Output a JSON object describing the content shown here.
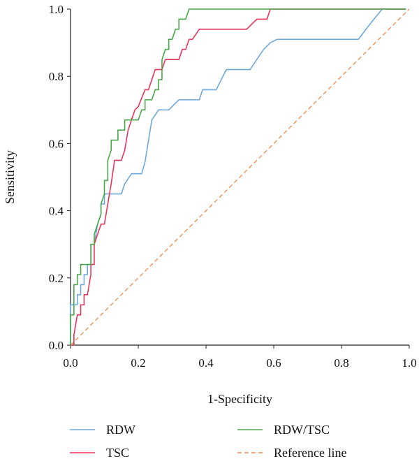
{
  "chart_data": {
    "type": "line",
    "xlabel": "1-Specificity",
    "ylabel": "Sensitivity",
    "xlim": [
      0,
      1
    ],
    "ylim": [
      0,
      1
    ],
    "x_ticks": [
      "0.0",
      "0.2",
      "0.4",
      "0.6",
      "0.8",
      "1.0"
    ],
    "y_ticks": [
      "0.0",
      "0.2",
      "0.4",
      "0.6",
      "0.8",
      "1.0"
    ],
    "grid": false,
    "legend_position": "bottom",
    "series": [
      {
        "name": "RDW",
        "color": "#6fa8dc",
        "dash": "solid",
        "points": [
          [
            0,
            0
          ],
          [
            0,
            0.12
          ],
          [
            0.02,
            0.12
          ],
          [
            0.02,
            0.15
          ],
          [
            0.03,
            0.15
          ],
          [
            0.03,
            0.18
          ],
          [
            0.04,
            0.18
          ],
          [
            0.04,
            0.21
          ],
          [
            0.05,
            0.21
          ],
          [
            0.05,
            0.24
          ],
          [
            0.06,
            0.24
          ],
          [
            0.06,
            0.3
          ],
          [
            0.07,
            0.3
          ],
          [
            0.08,
            0.36
          ],
          [
            0.09,
            0.39
          ],
          [
            0.09,
            0.42
          ],
          [
            0.1,
            0.42
          ],
          [
            0.1,
            0.45
          ],
          [
            0.15,
            0.45
          ],
          [
            0.16,
            0.48
          ],
          [
            0.18,
            0.51
          ],
          [
            0.21,
            0.51
          ],
          [
            0.22,
            0.545
          ],
          [
            0.24,
            0.67
          ],
          [
            0.26,
            0.7
          ],
          [
            0.29,
            0.7
          ],
          [
            0.32,
            0.73
          ],
          [
            0.38,
            0.73
          ],
          [
            0.39,
            0.76
          ],
          [
            0.43,
            0.76
          ],
          [
            0.46,
            0.82
          ],
          [
            0.53,
            0.82
          ],
          [
            0.55,
            0.85
          ],
          [
            0.57,
            0.88
          ],
          [
            0.59,
            0.9
          ],
          [
            0.61,
            0.91
          ],
          [
            0.85,
            0.91
          ],
          [
            0.88,
            0.95
          ],
          [
            0.92,
            1.0
          ],
          [
            0.99,
            1.0
          ]
        ]
      },
      {
        "name": "TSC",
        "color": "#e8365a",
        "dash": "solid",
        "points": [
          [
            0,
            0
          ],
          [
            0.01,
            0
          ],
          [
            0.01,
            0.03
          ],
          [
            0.02,
            0.09
          ],
          [
            0.03,
            0.09
          ],
          [
            0.03,
            0.12
          ],
          [
            0.04,
            0.12
          ],
          [
            0.04,
            0.15
          ],
          [
            0.05,
            0.15
          ],
          [
            0.06,
            0.21
          ],
          [
            0.06,
            0.24
          ],
          [
            0.07,
            0.24
          ],
          [
            0.07,
            0.3
          ],
          [
            0.08,
            0.33
          ],
          [
            0.09,
            0.36
          ],
          [
            0.1,
            0.36
          ],
          [
            0.11,
            0.42
          ],
          [
            0.12,
            0.48
          ],
          [
            0.13,
            0.55
          ],
          [
            0.15,
            0.55
          ],
          [
            0.16,
            0.58
          ],
          [
            0.17,
            0.64
          ],
          [
            0.18,
            0.67
          ],
          [
            0.19,
            0.7
          ],
          [
            0.2,
            0.71
          ],
          [
            0.22,
            0.76
          ],
          [
            0.23,
            0.76
          ],
          [
            0.25,
            0.82
          ],
          [
            0.27,
            0.82
          ],
          [
            0.28,
            0.85
          ],
          [
            0.32,
            0.85
          ],
          [
            0.33,
            0.88
          ],
          [
            0.34,
            0.88
          ],
          [
            0.35,
            0.91
          ],
          [
            0.36,
            0.91
          ],
          [
            0.38,
            0.94
          ],
          [
            0.49,
            0.94
          ],
          [
            0.52,
            0.94
          ],
          [
            0.55,
            0.97
          ],
          [
            0.58,
            0.97
          ],
          [
            0.59,
            1.0
          ],
          [
            0.99,
            1.0
          ]
        ]
      },
      {
        "name": "RDW/TSC",
        "color": "#4aa84a",
        "dash": "solid",
        "points": [
          [
            0,
            0
          ],
          [
            0,
            0.09
          ],
          [
            0.01,
            0.09
          ],
          [
            0.01,
            0.18
          ],
          [
            0.02,
            0.18
          ],
          [
            0.02,
            0.21
          ],
          [
            0.03,
            0.21
          ],
          [
            0.03,
            0.24
          ],
          [
            0.06,
            0.24
          ],
          [
            0.06,
            0.27
          ],
          [
            0.06,
            0.3
          ],
          [
            0.07,
            0.3
          ],
          [
            0.07,
            0.33
          ],
          [
            0.08,
            0.36
          ],
          [
            0.09,
            0.39
          ],
          [
            0.09,
            0.42
          ],
          [
            0.1,
            0.45
          ],
          [
            0.1,
            0.49
          ],
          [
            0.11,
            0.49
          ],
          [
            0.11,
            0.55
          ],
          [
            0.12,
            0.58
          ],
          [
            0.12,
            0.61
          ],
          [
            0.14,
            0.61
          ],
          [
            0.14,
            0.64
          ],
          [
            0.16,
            0.64
          ],
          [
            0.16,
            0.67
          ],
          [
            0.2,
            0.67
          ],
          [
            0.21,
            0.7
          ],
          [
            0.22,
            0.7
          ],
          [
            0.22,
            0.73
          ],
          [
            0.24,
            0.73
          ],
          [
            0.25,
            0.76
          ],
          [
            0.26,
            0.76
          ],
          [
            0.26,
            0.79
          ],
          [
            0.27,
            0.79
          ],
          [
            0.27,
            0.85
          ],
          [
            0.28,
            0.88
          ],
          [
            0.29,
            0.88
          ],
          [
            0.29,
            0.91
          ],
          [
            0.3,
            0.91
          ],
          [
            0.31,
            0.94
          ],
          [
            0.32,
            0.94
          ],
          [
            0.32,
            0.97
          ],
          [
            0.34,
            0.97
          ],
          [
            0.35,
            1.0
          ],
          [
            0.36,
            1.0
          ],
          [
            0.99,
            1.0
          ]
        ]
      },
      {
        "name": "Reference line",
        "color": "#f08a4b",
        "dash": "dashed",
        "points": [
          [
            0,
            0
          ],
          [
            1,
            1
          ]
        ]
      }
    ]
  }
}
